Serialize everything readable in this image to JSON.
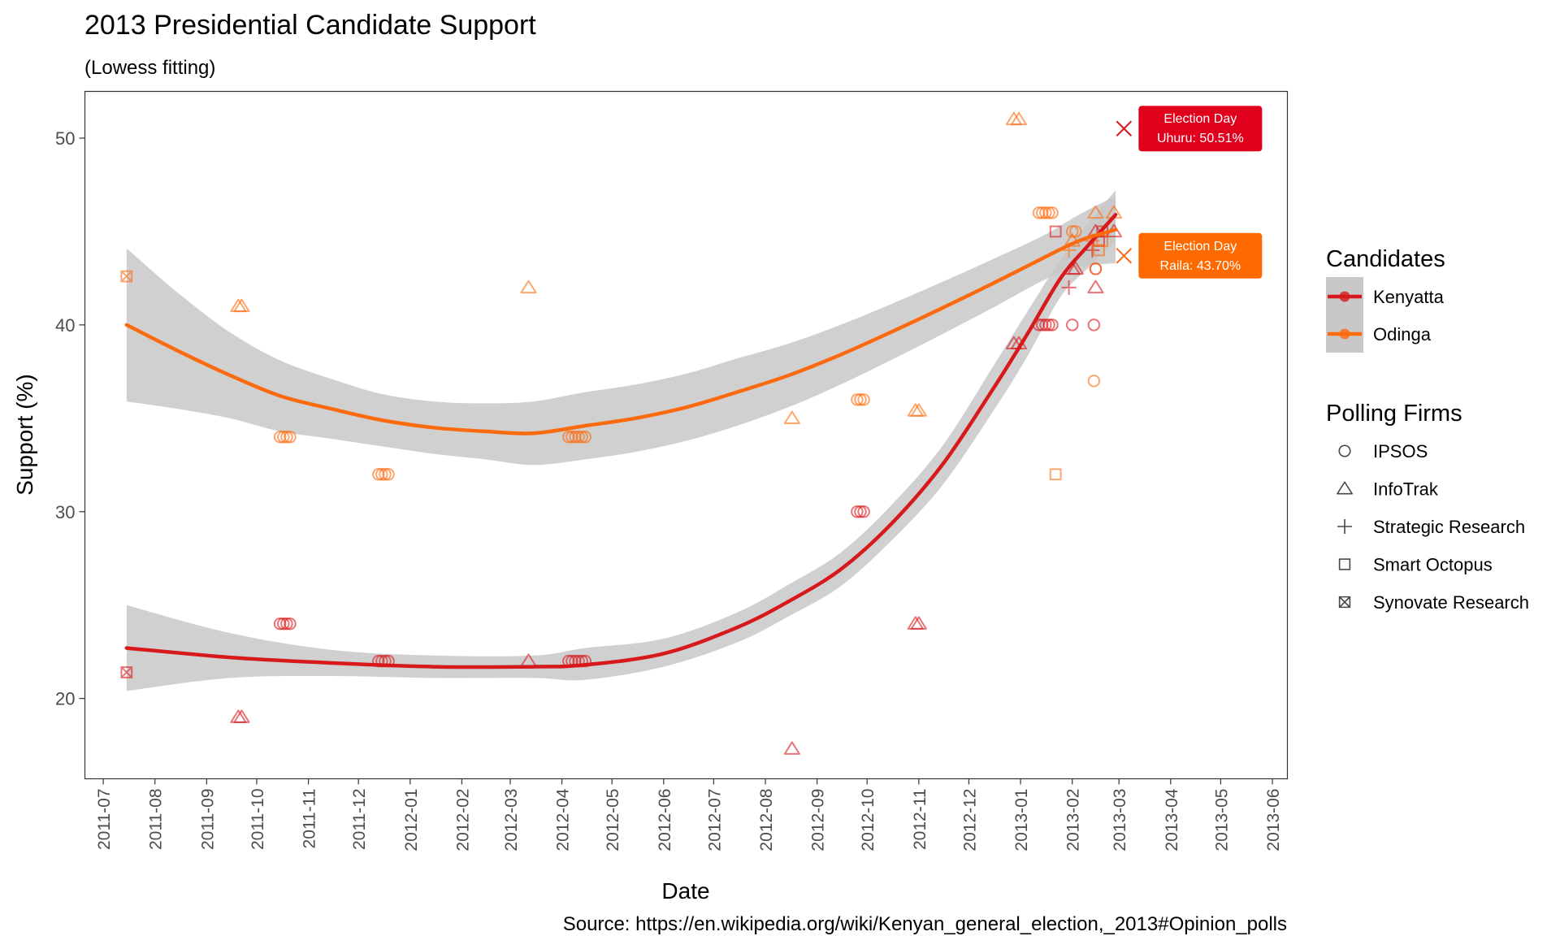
{
  "chart_data": {
    "type": "scatter",
    "title": "2013 Presidential Candidate Support",
    "subtitle": "(Lowess fitting)",
    "xlabel": "Date",
    "ylabel": "Support (%)",
    "caption": "Source: https://en.wikipedia.org/wiki/Kenyan_general_election,_2013#Opinion_polls",
    "xlim": [
      "2011-06-20",
      "2013-06-10"
    ],
    "ylim": [
      15.7,
      52.5
    ],
    "x_ticks": [
      "2011-07",
      "2011-08",
      "2011-09",
      "2011-10",
      "2011-11",
      "2011-12",
      "2012-01",
      "2012-02",
      "2012-03",
      "2012-04",
      "2012-05",
      "2012-06",
      "2012-07",
      "2012-08",
      "2012-09",
      "2012-10",
      "2012-11",
      "2012-12",
      "2013-01",
      "2013-02",
      "2013-03",
      "2013-04",
      "2013-05",
      "2013-06"
    ],
    "y_ticks": [
      20,
      30,
      40,
      50
    ],
    "grid": false,
    "colors": {
      "Kenyatta": "#d7191c",
      "Odinga": "#fb6a0e",
      "band": "#c8c8c8"
    },
    "legend_candidates": {
      "title": "Candidates",
      "placement": "right",
      "entries": [
        {
          "label": "Kenyatta",
          "color": "#d7191c"
        },
        {
          "label": "Odinga",
          "color": "#fb6a0e"
        }
      ]
    },
    "legend_firms": {
      "title": "Polling Firms",
      "placement": "right",
      "entries": [
        {
          "label": "IPSOS",
          "shape": "circle"
        },
        {
          "label": "InfoTrak",
          "shape": "triangle"
        },
        {
          "label": "Strategic Research",
          "shape": "plus"
        },
        {
          "label": "Smart Octopus",
          "shape": "square"
        },
        {
          "label": "Synovate Research",
          "shape": "square-x"
        }
      ]
    },
    "series": [
      {
        "name": "Kenyatta",
        "points": [
          {
            "x": "2011-07-15",
            "y": 21.4,
            "firm": "Synovate Research"
          },
          {
            "x": "2011-09-20",
            "y": 19.0,
            "firm": "InfoTrak"
          },
          {
            "x": "2011-09-22",
            "y": 19.0,
            "firm": "InfoTrak"
          },
          {
            "x": "2011-10-15",
            "y": 24.0,
            "firm": "IPSOS"
          },
          {
            "x": "2011-10-17",
            "y": 24.0,
            "firm": "IPSOS"
          },
          {
            "x": "2011-10-19",
            "y": 24.0,
            "firm": "IPSOS"
          },
          {
            "x": "2011-10-21",
            "y": 24.0,
            "firm": "IPSOS"
          },
          {
            "x": "2011-12-13",
            "y": 22.0,
            "firm": "IPSOS"
          },
          {
            "x": "2011-12-15",
            "y": 22.0,
            "firm": "IPSOS"
          },
          {
            "x": "2011-12-17",
            "y": 22.0,
            "firm": "IPSOS"
          },
          {
            "x": "2011-12-19",
            "y": 22.0,
            "firm": "IPSOS"
          },
          {
            "x": "2012-03-12",
            "y": 22.0,
            "firm": "InfoTrak"
          },
          {
            "x": "2012-04-05",
            "y": 22.0,
            "firm": "IPSOS"
          },
          {
            "x": "2012-04-07",
            "y": 22.0,
            "firm": "IPSOS"
          },
          {
            "x": "2012-04-09",
            "y": 22.0,
            "firm": "IPSOS"
          },
          {
            "x": "2012-04-11",
            "y": 22.0,
            "firm": "IPSOS"
          },
          {
            "x": "2012-04-13",
            "y": 22.0,
            "firm": "IPSOS"
          },
          {
            "x": "2012-04-15",
            "y": 22.0,
            "firm": "IPSOS"
          },
          {
            "x": "2012-08-17",
            "y": 17.3,
            "firm": "InfoTrak"
          },
          {
            "x": "2012-09-25",
            "y": 30.0,
            "firm": "IPSOS"
          },
          {
            "x": "2012-09-27",
            "y": 30.0,
            "firm": "IPSOS"
          },
          {
            "x": "2012-09-29",
            "y": 30.0,
            "firm": "IPSOS"
          },
          {
            "x": "2012-10-30",
            "y": 24.0,
            "firm": "InfoTrak"
          },
          {
            "x": "2012-11-01",
            "y": 24.0,
            "firm": "InfoTrak"
          },
          {
            "x": "2012-12-28",
            "y": 39.0,
            "firm": "InfoTrak"
          },
          {
            "x": "2012-12-31",
            "y": 39.0,
            "firm": "InfoTrak"
          },
          {
            "x": "2013-01-12",
            "y": 40.0,
            "firm": "IPSOS"
          },
          {
            "x": "2013-01-14",
            "y": 40.0,
            "firm": "IPSOS"
          },
          {
            "x": "2013-01-16",
            "y": 40.0,
            "firm": "IPSOS"
          },
          {
            "x": "2013-01-18",
            "y": 40.0,
            "firm": "IPSOS"
          },
          {
            "x": "2013-01-20",
            "y": 40.0,
            "firm": "IPSOS"
          },
          {
            "x": "2013-01-22",
            "y": 45.0,
            "firm": "Smart Octopus"
          },
          {
            "x": "2013-01-30",
            "y": 42.0,
            "firm": "Strategic Research"
          },
          {
            "x": "2013-02-01",
            "y": 43.0,
            "firm": "InfoTrak"
          },
          {
            "x": "2013-02-01",
            "y": 40.0,
            "firm": "IPSOS"
          },
          {
            "x": "2013-02-03",
            "y": 43.0,
            "firm": "InfoTrak"
          },
          {
            "x": "2013-02-13",
            "y": 44.0,
            "firm": "Strategic Research"
          },
          {
            "x": "2013-02-14",
            "y": 40.0,
            "firm": "IPSOS"
          },
          {
            "x": "2013-02-15",
            "y": 45.0,
            "firm": "InfoTrak"
          },
          {
            "x": "2013-02-15",
            "y": 42.0,
            "firm": "InfoTrak"
          },
          {
            "x": "2013-02-15",
            "y": 43.0,
            "firm": "IPSOS"
          },
          {
            "x": "2013-02-17",
            "y": 44.5,
            "firm": "Smart Octopus"
          },
          {
            "x": "2013-02-19",
            "y": 45.0,
            "firm": "Smart Octopus"
          },
          {
            "x": "2013-02-26",
            "y": 45.0,
            "firm": "InfoTrak"
          }
        ],
        "fit_line": [
          {
            "x": "2011-07-15",
            "y": 22.7
          },
          {
            "x": "2011-09-15",
            "y": 22.2
          },
          {
            "x": "2011-11-15",
            "y": 21.9
          },
          {
            "x": "2012-01-15",
            "y": 21.7
          },
          {
            "x": "2012-03-15",
            "y": 21.7
          },
          {
            "x": "2012-04-15",
            "y": 21.8
          },
          {
            "x": "2012-06-01",
            "y": 22.4
          },
          {
            "x": "2012-07-15",
            "y": 23.8
          },
          {
            "x": "2012-08-15",
            "y": 25.2
          },
          {
            "x": "2012-09-15",
            "y": 26.9
          },
          {
            "x": "2012-10-15",
            "y": 29.3
          },
          {
            "x": "2012-11-15",
            "y": 32.5
          },
          {
            "x": "2012-12-15",
            "y": 36.5
          },
          {
            "x": "2013-01-05",
            "y": 39.5
          },
          {
            "x": "2013-01-25",
            "y": 42.5
          },
          {
            "x": "2013-02-10",
            "y": 44.2
          },
          {
            "x": "2013-02-27",
            "y": 45.9
          }
        ],
        "band": [
          {
            "x": "2011-07-15",
            "lo": 20.4,
            "hi": 25.0
          },
          {
            "x": "2011-09-15",
            "lo": 21.1,
            "hi": 23.5
          },
          {
            "x": "2011-11-15",
            "lo": 21.2,
            "hi": 22.6
          },
          {
            "x": "2012-01-15",
            "lo": 21.1,
            "hi": 22.3
          },
          {
            "x": "2012-03-15",
            "lo": 21.1,
            "hi": 22.3
          },
          {
            "x": "2012-04-15",
            "lo": 21.0,
            "hi": 22.7
          },
          {
            "x": "2012-06-01",
            "lo": 21.7,
            "hi": 23.2
          },
          {
            "x": "2012-07-15",
            "lo": 23.0,
            "hi": 24.6
          },
          {
            "x": "2012-08-15",
            "lo": 24.4,
            "hi": 26.1
          },
          {
            "x": "2012-09-15",
            "lo": 26.0,
            "hi": 27.8
          },
          {
            "x": "2012-10-15",
            "lo": 28.4,
            "hi": 30.3
          },
          {
            "x": "2012-11-15",
            "lo": 31.4,
            "hi": 33.5
          },
          {
            "x": "2012-12-15",
            "lo": 35.3,
            "hi": 37.7
          },
          {
            "x": "2013-01-05",
            "lo": 38.3,
            "hi": 40.7
          },
          {
            "x": "2013-01-25",
            "lo": 41.5,
            "hi": 43.5
          },
          {
            "x": "2013-02-10",
            "lo": 43.0,
            "hi": 45.4
          },
          {
            "x": "2013-02-27",
            "lo": 44.5,
            "hi": 47.2
          }
        ]
      },
      {
        "name": "Odinga",
        "points": [
          {
            "x": "2011-07-15",
            "y": 42.6,
            "firm": "Synovate Research"
          },
          {
            "x": "2011-09-20",
            "y": 41.0,
            "firm": "InfoTrak"
          },
          {
            "x": "2011-09-22",
            "y": 41.0,
            "firm": "InfoTrak"
          },
          {
            "x": "2011-10-15",
            "y": 34.0,
            "firm": "IPSOS"
          },
          {
            "x": "2011-10-17",
            "y": 34.0,
            "firm": "IPSOS"
          },
          {
            "x": "2011-10-19",
            "y": 34.0,
            "firm": "IPSOS"
          },
          {
            "x": "2011-10-21",
            "y": 34.0,
            "firm": "IPSOS"
          },
          {
            "x": "2011-12-13",
            "y": 32.0,
            "firm": "IPSOS"
          },
          {
            "x": "2011-12-15",
            "y": 32.0,
            "firm": "IPSOS"
          },
          {
            "x": "2011-12-17",
            "y": 32.0,
            "firm": "IPSOS"
          },
          {
            "x": "2011-12-19",
            "y": 32.0,
            "firm": "IPSOS"
          },
          {
            "x": "2012-03-12",
            "y": 42.0,
            "firm": "InfoTrak"
          },
          {
            "x": "2012-04-05",
            "y": 34.0,
            "firm": "IPSOS"
          },
          {
            "x": "2012-04-07",
            "y": 34.0,
            "firm": "IPSOS"
          },
          {
            "x": "2012-04-09",
            "y": 34.0,
            "firm": "IPSOS"
          },
          {
            "x": "2012-04-11",
            "y": 34.0,
            "firm": "IPSOS"
          },
          {
            "x": "2012-04-13",
            "y": 34.0,
            "firm": "IPSOS"
          },
          {
            "x": "2012-04-15",
            "y": 34.0,
            "firm": "IPSOS"
          },
          {
            "x": "2012-08-17",
            "y": 35.0,
            "firm": "InfoTrak"
          },
          {
            "x": "2012-09-25",
            "y": 36.0,
            "firm": "IPSOS"
          },
          {
            "x": "2012-09-27",
            "y": 36.0,
            "firm": "IPSOS"
          },
          {
            "x": "2012-09-29",
            "y": 36.0,
            "firm": "IPSOS"
          },
          {
            "x": "2012-10-30",
            "y": 35.4,
            "firm": "InfoTrak"
          },
          {
            "x": "2012-11-01",
            "y": 35.4,
            "firm": "InfoTrak"
          },
          {
            "x": "2012-12-28",
            "y": 51.0,
            "firm": "InfoTrak"
          },
          {
            "x": "2012-12-31",
            "y": 51.0,
            "firm": "InfoTrak"
          },
          {
            "x": "2013-01-12",
            "y": 46.0,
            "firm": "IPSOS"
          },
          {
            "x": "2013-01-14",
            "y": 46.0,
            "firm": "IPSOS"
          },
          {
            "x": "2013-01-16",
            "y": 46.0,
            "firm": "IPSOS"
          },
          {
            "x": "2013-01-18",
            "y": 46.0,
            "firm": "IPSOS"
          },
          {
            "x": "2013-01-20",
            "y": 46.0,
            "firm": "IPSOS"
          },
          {
            "x": "2013-01-22",
            "y": 32.0,
            "firm": "Smart Octopus"
          },
          {
            "x": "2013-01-30",
            "y": 44.0,
            "firm": "Strategic Research"
          },
          {
            "x": "2013-02-01",
            "y": 45.0,
            "firm": "IPSOS"
          },
          {
            "x": "2013-02-01",
            "y": 44.5,
            "firm": "InfoTrak"
          },
          {
            "x": "2013-02-03",
            "y": 45.0,
            "firm": "IPSOS"
          },
          {
            "x": "2013-02-13",
            "y": 44.5,
            "firm": "Strategic Research"
          },
          {
            "x": "2013-02-14",
            "y": 37.0,
            "firm": "IPSOS"
          },
          {
            "x": "2013-02-15",
            "y": 46.0,
            "firm": "InfoTrak"
          },
          {
            "x": "2013-02-15",
            "y": 43.0,
            "firm": "IPSOS"
          },
          {
            "x": "2013-02-17",
            "y": 44.0,
            "firm": "Smart Octopus"
          },
          {
            "x": "2013-02-19",
            "y": 44.5,
            "firm": "Smart Octopus"
          },
          {
            "x": "2013-02-26",
            "y": 46.0,
            "firm": "InfoTrak"
          }
        ],
        "fit_line": [
          {
            "x": "2011-07-15",
            "y": 40.0
          },
          {
            "x": "2011-08-15",
            "y": 38.6
          },
          {
            "x": "2011-09-15",
            "y": 37.3
          },
          {
            "x": "2011-10-15",
            "y": 36.2
          },
          {
            "x": "2011-11-15",
            "y": 35.5
          },
          {
            "x": "2011-12-15",
            "y": 34.9
          },
          {
            "x": "2012-01-15",
            "y": 34.5
          },
          {
            "x": "2012-02-15",
            "y": 34.3
          },
          {
            "x": "2012-03-15",
            "y": 34.2
          },
          {
            "x": "2012-04-15",
            "y": 34.6
          },
          {
            "x": "2012-05-15",
            "y": 35.0
          },
          {
            "x": "2012-06-15",
            "y": 35.6
          },
          {
            "x": "2012-07-15",
            "y": 36.4
          },
          {
            "x": "2012-08-15",
            "y": 37.3
          },
          {
            "x": "2012-09-15",
            "y": 38.4
          },
          {
            "x": "2012-10-15",
            "y": 39.6
          },
          {
            "x": "2012-11-15",
            "y": 40.9
          },
          {
            "x": "2012-12-15",
            "y": 42.2
          },
          {
            "x": "2013-01-15",
            "y": 43.6
          },
          {
            "x": "2013-02-05",
            "y": 44.5
          },
          {
            "x": "2013-02-27",
            "y": 45.1
          }
        ],
        "band": [
          {
            "x": "2011-07-15",
            "lo": 35.9,
            "hi": 44.1
          },
          {
            "x": "2011-08-15",
            "lo": 35.5,
            "hi": 41.7
          },
          {
            "x": "2011-09-15",
            "lo": 35.0,
            "hi": 39.6
          },
          {
            "x": "2011-10-15",
            "lo": 34.3,
            "hi": 38.1
          },
          {
            "x": "2011-11-15",
            "lo": 33.9,
            "hi": 37.1
          },
          {
            "x": "2011-12-15",
            "lo": 33.5,
            "hi": 36.3
          },
          {
            "x": "2012-01-15",
            "lo": 33.1,
            "hi": 35.9
          },
          {
            "x": "2012-02-15",
            "lo": 32.8,
            "hi": 35.8
          },
          {
            "x": "2012-03-15",
            "lo": 32.5,
            "hi": 35.9
          },
          {
            "x": "2012-04-15",
            "lo": 32.8,
            "hi": 36.4
          },
          {
            "x": "2012-05-15",
            "lo": 33.2,
            "hi": 36.8
          },
          {
            "x": "2012-06-15",
            "lo": 33.8,
            "hi": 37.4
          },
          {
            "x": "2012-07-15",
            "lo": 34.6,
            "hi": 38.2
          },
          {
            "x": "2012-08-15",
            "lo": 35.6,
            "hi": 39.0
          },
          {
            "x": "2012-09-15",
            "lo": 36.8,
            "hi": 40.0
          },
          {
            "x": "2012-10-15",
            "lo": 38.1,
            "hi": 41.1
          },
          {
            "x": "2012-11-15",
            "lo": 39.5,
            "hi": 42.3
          },
          {
            "x": "2012-12-15",
            "lo": 40.9,
            "hi": 43.5
          },
          {
            "x": "2013-01-15",
            "lo": 42.4,
            "hi": 44.8
          },
          {
            "x": "2013-02-05",
            "lo": 43.1,
            "hi": 45.9
          },
          {
            "x": "2013-02-27",
            "lo": 43.3,
            "hi": 46.9
          }
        ]
      }
    ],
    "annotations": [
      {
        "series": "Kenyatta",
        "x": "2013-03-04",
        "y": 50.51,
        "marker": "x",
        "line1": "Election Day",
        "line2": "Uhuru: 50.51%",
        "color": "#d7191c",
        "box_color": "#e0001b"
      },
      {
        "series": "Odinga",
        "x": "2013-03-04",
        "y": 43.7,
        "marker": "x",
        "line1": "Election Day",
        "line2": "Raila: 43.70%",
        "color": "#fb6a0e",
        "box_color": "#ff6a00"
      }
    ]
  }
}
